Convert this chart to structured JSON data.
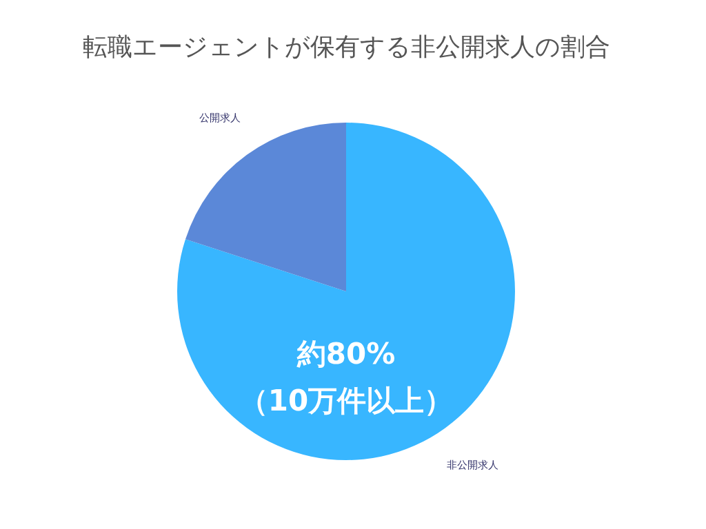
{
  "chart_data": {
    "type": "pie",
    "title": "転職エージェントが保有する非公開求人の割合",
    "categories": [
      "非公開求人",
      "公開求人"
    ],
    "values": [
      80,
      20
    ],
    "colors": [
      "#38b6ff",
      "#5b88d8"
    ],
    "annotations": [
      "約80%\n（10万件以上）"
    ],
    "legend": false
  }
}
